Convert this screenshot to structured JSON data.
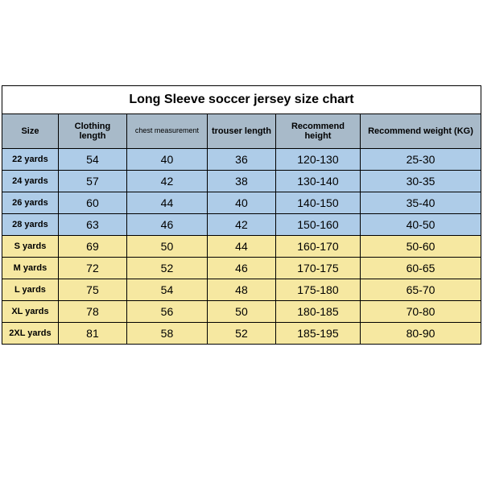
{
  "title": "Long Sleeve soccer jersey size chart",
  "columns": [
    "Size",
    "Clothing length",
    "chest measurement",
    "trouser length",
    "Recommend height",
    "Recommend weight (KG)"
  ],
  "header_bg": "#a8bac9",
  "groups": [
    {
      "bg": "#aecce8",
      "rows": [
        {
          "size": "22 yards",
          "v": [
            "54",
            "40",
            "36",
            "120-130",
            "25-30"
          ]
        },
        {
          "size": "24 yards",
          "v": [
            "57",
            "42",
            "38",
            "130-140",
            "30-35"
          ]
        },
        {
          "size": "26 yards",
          "v": [
            "60",
            "44",
            "40",
            "140-150",
            "35-40"
          ]
        },
        {
          "size": "28 yards",
          "v": [
            "63",
            "46",
            "42",
            "150-160",
            "40-50"
          ]
        }
      ]
    },
    {
      "bg": "#f6e8a1",
      "rows": [
        {
          "size": "S yards",
          "v": [
            "69",
            "50",
            "44",
            "160-170",
            "50-60"
          ]
        },
        {
          "size": "M yards",
          "v": [
            "72",
            "52",
            "46",
            "170-175",
            "60-65"
          ]
        },
        {
          "size": "L yards",
          "v": [
            "75",
            "54",
            "48",
            "175-180",
            "65-70"
          ]
        },
        {
          "size": "XL yards",
          "v": [
            "78",
            "56",
            "50",
            "180-185",
            "70-80"
          ]
        },
        {
          "size": "2XL yards",
          "v": [
            "81",
            "58",
            "52",
            "185-195",
            "80-90"
          ]
        }
      ]
    }
  ]
}
